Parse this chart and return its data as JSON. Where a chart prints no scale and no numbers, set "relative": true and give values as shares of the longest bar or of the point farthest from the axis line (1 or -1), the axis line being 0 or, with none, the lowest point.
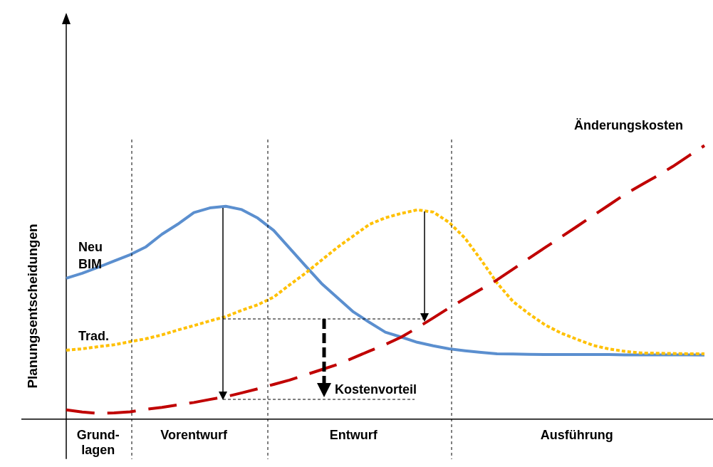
{
  "chart_data": {
    "type": "line",
    "relative": true,
    "ylabel": "Planungsentscheidungen",
    "tick_labels": "x",
    "legend": false,
    "marker": "none",
    "categories": [
      null,
      null,
      "Grund-\nlagen",
      null,
      null,
      null,
      null,
      null,
      "Vorentwurf",
      null,
      null,
      null,
      null,
      null,
      null,
      null,
      null,
      null,
      "Entwurf",
      null,
      null,
      null,
      null,
      null,
      null,
      null,
      null,
      null,
      null,
      null,
      null,
      null,
      "Ausführung",
      null,
      null,
      null,
      null,
      null,
      null,
      null,
      null
    ],
    "series": [
      {
        "name": "Neu BIM",
        "color": "#5b8fcf",
        "line_style": "solid",
        "values": [
          0.515,
          0.533,
          0.555,
          0.578,
          0.601,
          0.63,
          0.676,
          0.713,
          0.755,
          0.772,
          0.778,
          0.766,
          0.735,
          0.69,
          0.625,
          0.56,
          0.496,
          0.444,
          0.392,
          0.354,
          0.318,
          0.3,
          0.281,
          0.268,
          0.257,
          0.25,
          0.244,
          0.239,
          0.238,
          0.237,
          0.236,
          0.236,
          0.236,
          0.236,
          0.236,
          0.235,
          0.235,
          0.235,
          0.235,
          0.235,
          0.234
        ]
      },
      {
        "name": "Trad.",
        "color": "#ffc000",
        "line_style": "dotted",
        "values": [
          0.252,
          0.257,
          0.265,
          0.272,
          0.283,
          0.294,
          0.308,
          0.326,
          0.342,
          0.359,
          0.375,
          0.398,
          0.418,
          0.446,
          0.491,
          0.534,
          0.581,
          0.628,
          0.67,
          0.712,
          0.736,
          0.752,
          0.765,
          0.757,
          0.719,
          0.661,
          0.582,
          0.498,
          0.43,
          0.385,
          0.345,
          0.315,
          0.292,
          0.27,
          0.257,
          0.248,
          0.242,
          0.241,
          0.24,
          0.239,
          0.239
        ]
      },
      {
        "name": "Änderungskosten",
        "color": "#c00000",
        "line_style": "dashed",
        "values": [
          0.034,
          0.026,
          0.021,
          0.023,
          0.027,
          0.036,
          0.043,
          0.052,
          0.061,
          0.072,
          0.082,
          0.096,
          0.111,
          0.127,
          0.143,
          0.162,
          0.181,
          0.2,
          0.224,
          0.249,
          0.273,
          0.3,
          0.334,
          0.37,
          0.407,
          0.441,
          0.475,
          0.509,
          0.548,
          0.588,
          0.627,
          0.665,
          0.704,
          0.743,
          0.782,
          0.821,
          0.855,
          0.888,
          0.923,
          0.962,
          1
        ]
      }
    ],
    "annotations": [
      "Kostenvorteil"
    ]
  }
}
